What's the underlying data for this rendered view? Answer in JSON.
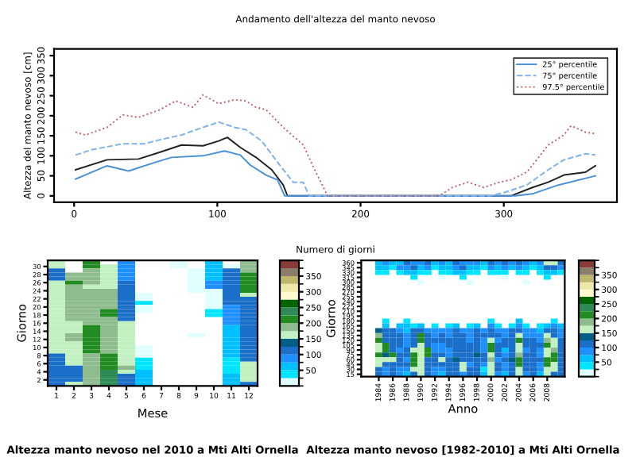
{
  "chart_data": [
    {
      "type": "line",
      "title": "Andamento dell'altezza del manto nevoso",
      "xlabel": "Numero di giorni",
      "ylabel": "Altezza del manto nevoso [cm]",
      "xlim": [
        -14,
        379
      ],
      "ylim": [
        -16,
        367
      ],
      "xticks": [
        0,
        100,
        200,
        300
      ],
      "yticks": [
        0,
        50,
        100,
        150,
        200,
        250,
        300,
        350
      ],
      "grid": false,
      "legend": "top right",
      "series": [
        {
          "color": "#222222",
          "line_style": "solid",
          "x": [
            1,
            23,
            45,
            60,
            75,
            90,
            101,
            107,
            116,
            127,
            138,
            146,
            149,
            305,
            320,
            331,
            342,
            357,
            364
          ],
          "values": [
            65,
            90,
            92,
            109,
            127,
            125,
            137,
            146,
            121,
            96,
            65,
            27,
            0,
            0,
            21,
            34,
            52,
            59,
            75
          ]
        },
        {
          "name": "25° percentile",
          "color": "#4a90d9",
          "line_style": "solid",
          "x": [
            1,
            23,
            38,
            57,
            68,
            90,
            105,
            116,
            123,
            134,
            142,
            147,
            308,
            320,
            338,
            364
          ],
          "values": [
            42,
            75,
            62,
            84,
            96,
            100,
            112,
            102,
            77,
            52,
            40,
            0,
            0,
            5,
            27,
            50
          ]
        },
        {
          "name": "75° percentile",
          "color": "#7fb2ec",
          "line_style": "dashed",
          "x": [
            1,
            12,
            34,
            49,
            60,
            75,
            90,
            101,
            112,
            120,
            131,
            142,
            153,
            160,
            164,
            290,
            301,
            316,
            331,
            342,
            357,
            364
          ],
          "values": [
            102,
            115,
            130,
            130,
            140,
            152,
            171,
            184,
            171,
            165,
            137,
            84,
            34,
            34,
            0,
            0,
            9,
            27,
            65,
            90,
            105,
            102
          ]
        },
        {
          "name": "97.5° percentile",
          "color": "#c06060",
          "line_style": "dotted",
          "x": [
            1,
            8,
            23,
            34,
            45,
            60,
            71,
            83,
            90,
            101,
            112,
            120,
            127,
            134,
            146,
            160,
            168,
            177,
            255,
            264,
            275,
            286,
            297,
            305,
            316,
            323,
            331,
            342,
            347,
            357,
            364
          ],
          "values": [
            159,
            152,
            171,
            202,
            196,
            215,
            237,
            221,
            252,
            230,
            240,
            237,
            221,
            215,
            171,
            127,
            65,
            0,
            0,
            21,
            34,
            21,
            34,
            40,
            59,
            90,
            127,
            152,
            175,
            159,
            155
          ]
        }
      ]
    },
    {
      "type": "heatmap",
      "title": "Altezza manto nevoso nel 2010 a Mti Alti Ornella",
      "xlabel": "Mese",
      "ylabel": "Giorno",
      "clim": [
        0,
        400
      ],
      "cticks": [
        50,
        100,
        150,
        200,
        250,
        300,
        350
      ],
      "categories": [
        "1",
        "2",
        "3",
        "4",
        "5",
        "6",
        "7",
        "8",
        "9",
        "10",
        "11",
        "12"
      ],
      "y_categories": [
        null,
        "30",
        null,
        "28",
        null,
        "26",
        null,
        "24",
        null,
        "22",
        null,
        "20",
        null,
        "18",
        null,
        "16",
        null,
        "14",
        null,
        "12",
        null,
        "10",
        null,
        "8",
        null,
        "6",
        null,
        "4",
        null,
        "2",
        null
      ],
      "cells": [
        [
          150,
          null,
          210,
          null,
          85,
          null,
          null,
          15,
          null,
          60,
          null,
          175
        ],
        [
          150,
          null,
          210,
          150,
          85,
          null,
          null,
          15,
          null,
          60,
          15,
          175
        ],
        [
          120,
          null,
          175,
          150,
          85,
          null,
          null,
          null,
          15,
          60,
          120,
          175
        ],
        [
          120,
          175,
          175,
          150,
          85,
          null,
          null,
          null,
          15,
          60,
          120,
          210
        ],
        [
          120,
          175,
          175,
          150,
          85,
          null,
          null,
          null,
          15,
          60,
          120,
          210
        ],
        [
          150,
          210,
          175,
          150,
          105,
          null,
          null,
          null,
          15,
          85,
          105,
          210
        ],
        [
          150,
          175,
          150,
          150,
          105,
          null,
          null,
          null,
          15,
          85,
          105,
          210
        ],
        [
          150,
          175,
          175,
          175,
          105,
          null,
          null,
          null,
          15,
          15,
          105,
          200
        ],
        [
          150,
          175,
          175,
          175,
          105,
          15,
          null,
          null,
          null,
          15,
          105,
          150
        ],
        [
          150,
          175,
          175,
          175,
          120,
          15,
          null,
          null,
          null,
          15,
          105,
          120
        ],
        [
          150,
          175,
          175,
          175,
          120,
          35,
          null,
          null,
          null,
          15,
          105,
          120
        ],
        [
          150,
          175,
          175,
          175,
          120,
          15,
          null,
          null,
          null,
          15,
          85,
          120
        ],
        [
          150,
          175,
          175,
          210,
          120,
          15,
          null,
          null,
          null,
          35,
          85,
          120
        ],
        [
          150,
          175,
          175,
          210,
          120,
          null,
          null,
          null,
          null,
          35,
          85,
          105
        ],
        [
          150,
          175,
          175,
          175,
          120,
          null,
          null,
          null,
          null,
          null,
          85,
          105
        ],
        [
          150,
          150,
          175,
          175,
          150,
          null,
          null,
          null,
          null,
          null,
          85,
          105
        ],
        [
          150,
          150,
          210,
          175,
          150,
          null,
          null,
          null,
          null,
          null,
          60,
          105
        ],
        [
          150,
          150,
          210,
          175,
          150,
          null,
          null,
          null,
          null,
          null,
          60,
          105
        ],
        [
          150,
          175,
          210,
          175,
          150,
          null,
          null,
          null,
          15,
          null,
          60,
          105
        ],
        [
          150,
          175,
          210,
          175,
          150,
          null,
          null,
          null,
          null,
          null,
          60,
          120
        ],
        [
          150,
          150,
          210,
          175,
          150,
          null,
          null,
          null,
          null,
          null,
          60,
          120
        ],
        [
          150,
          150,
          210,
          175,
          150,
          15,
          null,
          null,
          null,
          null,
          60,
          120
        ],
        [
          150,
          150,
          210,
          175,
          150,
          15,
          null,
          null,
          null,
          null,
          60,
          120
        ],
        [
          120,
          150,
          175,
          210,
          150,
          15,
          null,
          null,
          null,
          null,
          60,
          120
        ],
        [
          120,
          150,
          175,
          210,
          150,
          35,
          null,
          null,
          null,
          null,
          35,
          120
        ],
        [
          120,
          150,
          175,
          210,
          150,
          35,
          null,
          null,
          null,
          null,
          35,
          150
        ],
        [
          120,
          120,
          175,
          210,
          175,
          35,
          null,
          null,
          null,
          null,
          35,
          150
        ],
        [
          120,
          120,
          175,
          230,
          150,
          60,
          null,
          null,
          null,
          null,
          35,
          150
        ],
        [
          120,
          120,
          175,
          230,
          120,
          60,
          null,
          null,
          null,
          null,
          60,
          150
        ],
        [
          120,
          120,
          175,
          230,
          120,
          60,
          null,
          null,
          null,
          null,
          60,
          150
        ],
        [
          120,
          150,
          175,
          230,
          120,
          60,
          null,
          null,
          null,
          null,
          60,
          120
        ]
      ]
    },
    {
      "type": "heatmap",
      "title": "Altezza manto nevoso [1982-2010] a Mti Alti Ornella",
      "xlabel": "Anno",
      "ylabel": "Giorno",
      "clim": [
        0,
        400
      ],
      "cticks": [
        50,
        100,
        150,
        200,
        250,
        300,
        350
      ],
      "categories": [
        null,
        null,
        "1984",
        null,
        "1986",
        null,
        "1988",
        null,
        "1990",
        null,
        "1992",
        null,
        "1994",
        null,
        "1996",
        null,
        "1998",
        null,
        "2000",
        null,
        "2002",
        null,
        "2004",
        null,
        "2006",
        null,
        "2008",
        null,
        null
      ],
      "y_categories": [
        "360",
        "345",
        "330",
        "315",
        "300",
        "285",
        "270",
        "255",
        "240",
        "225",
        "210",
        "195",
        "180",
        "165",
        "150",
        "135",
        "120",
        "105",
        "90",
        "75",
        "60",
        "45",
        "30",
        "15"
      ],
      "cells": [
        [
          null,
          null,
          60,
          85,
          60,
          60,
          105,
          85,
          85,
          105,
          60,
          85,
          60,
          105,
          85,
          85,
          85,
          60,
          105,
          85,
          105,
          85,
          105,
          85,
          60,
          85,
          150,
          150,
          105
        ],
        [
          null,
          null,
          60,
          60,
          35,
          85,
          85,
          105,
          60,
          85,
          35,
          60,
          60,
          85,
          105,
          60,
          60,
          35,
          85,
          60,
          85,
          60,
          85,
          60,
          35,
          60,
          105,
          120,
          85
        ],
        [
          null,
          null,
          35,
          35,
          null,
          35,
          60,
          60,
          35,
          35,
          null,
          35,
          35,
          60,
          60,
          35,
          35,
          null,
          35,
          35,
          35,
          null,
          35,
          35,
          null,
          35,
          60,
          60,
          35
        ],
        [
          null,
          null,
          null,
          null,
          null,
          null,
          null,
          35,
          null,
          null,
          null,
          15,
          null,
          null,
          35,
          null,
          null,
          null,
          null,
          null,
          15,
          null,
          null,
          null,
          null,
          null,
          35,
          null,
          null
        ],
        [
          null,
          null,
          null,
          null,
          null,
          null,
          null,
          null,
          15,
          null,
          null,
          null,
          null,
          null,
          null,
          15,
          null,
          null,
          null,
          null,
          null,
          null,
          null,
          15,
          null,
          null,
          null,
          null,
          null
        ],
        [
          null,
          null,
          null,
          null,
          null,
          null,
          null,
          null,
          null,
          null,
          null,
          null,
          null,
          null,
          null,
          null,
          null,
          null,
          null,
          null,
          null,
          null,
          null,
          null,
          null,
          null,
          null,
          null,
          null
        ],
        [
          null,
          null,
          null,
          null,
          null,
          null,
          null,
          null,
          null,
          null,
          null,
          null,
          null,
          null,
          null,
          null,
          null,
          null,
          null,
          null,
          null,
          null,
          null,
          null,
          null,
          null,
          null,
          null,
          null
        ],
        [
          null,
          null,
          null,
          null,
          null,
          null,
          null,
          null,
          null,
          null,
          null,
          null,
          null,
          null,
          null,
          null,
          null,
          null,
          null,
          null,
          null,
          null,
          null,
          null,
          null,
          null,
          null,
          null,
          null
        ],
        [
          null,
          null,
          null,
          null,
          null,
          null,
          null,
          null,
          null,
          null,
          null,
          null,
          null,
          null,
          null,
          null,
          null,
          null,
          null,
          null,
          null,
          null,
          null,
          null,
          null,
          null,
          null,
          null,
          null
        ],
        [
          null,
          null,
          null,
          null,
          null,
          null,
          null,
          null,
          null,
          null,
          null,
          null,
          null,
          null,
          null,
          null,
          null,
          null,
          null,
          null,
          null,
          null,
          null,
          null,
          null,
          null,
          null,
          null,
          null
        ],
        [
          null,
          null,
          null,
          null,
          null,
          null,
          null,
          null,
          null,
          null,
          null,
          null,
          null,
          null,
          null,
          null,
          null,
          null,
          null,
          null,
          null,
          null,
          null,
          null,
          null,
          null,
          null,
          null,
          null
        ],
        [
          null,
          null,
          null,
          null,
          null,
          null,
          null,
          null,
          null,
          null,
          null,
          null,
          null,
          null,
          null,
          null,
          null,
          null,
          null,
          null,
          null,
          null,
          null,
          null,
          null,
          null,
          null,
          null,
          null
        ],
        [
          null,
          null,
          null,
          35,
          null,
          null,
          35,
          null,
          null,
          null,
          null,
          null,
          null,
          null,
          null,
          null,
          null,
          null,
          35,
          null,
          null,
          null,
          60,
          null,
          null,
          null,
          null,
          35,
          null
        ],
        [
          null,
          null,
          null,
          60,
          null,
          60,
          60,
          35,
          60,
          null,
          35,
          null,
          35,
          60,
          null,
          35,
          60,
          null,
          85,
          35,
          null,
          35,
          85,
          35,
          null,
          35,
          60,
          85,
          60
        ],
        [
          null,
          null,
          130,
          100,
          100,
          90,
          70,
          100,
          105,
          85,
          85,
          90,
          85,
          100,
          85,
          85,
          100,
          90,
          105,
          90,
          85,
          100,
          120,
          85,
          90,
          60,
          110,
          105,
          90
        ],
        [
          null,
          null,
          190,
          110,
          115,
          110,
          80,
          105,
          210,
          100,
          95,
          105,
          90,
          110,
          100,
          90,
          105,
          100,
          120,
          100,
          95,
          120,
          150,
          90,
          95,
          85,
          150,
          120,
          95
        ],
        [
          null,
          null,
          200,
          120,
          100,
          100,
          85,
          110,
          200,
          110,
          100,
          100,
          105,
          115,
          120,
          95,
          120,
          85,
          150,
          95,
          105,
          110,
          200,
          100,
          100,
          95,
          175,
          160,
          100
        ],
        [
          null,
          null,
          150,
          210,
          110,
          105,
          90,
          120,
          155,
          120,
          90,
          85,
          100,
          120,
          110,
          100,
          110,
          90,
          210,
          105,
          100,
          115,
          160,
          105,
          120,
          100,
          200,
          150,
          115
        ],
        [
          null,
          null,
          170,
          200,
          120,
          95,
          110,
          160,
          160,
          210,
          85,
          90,
          85,
          110,
          100,
          105,
          115,
          95,
          200,
          110,
          60,
          120,
          150,
          95,
          110,
          90,
          160,
          175,
          120
        ],
        [
          null,
          null,
          210,
          130,
          200,
          100,
          100,
          220,
          150,
          200,
          100,
          100,
          95,
          120,
          105,
          110,
          125,
          105,
          160,
          100,
          85,
          110,
          175,
          100,
          105,
          85,
          150,
          210,
          110
        ],
        [
          null,
          null,
          160,
          150,
          170,
          110,
          95,
          210,
          170,
          110,
          105,
          150,
          100,
          125,
          100,
          100,
          120,
          100,
          175,
          95,
          100,
          125,
          210,
          110,
          115,
          100,
          210,
          200,
          105
        ],
        [
          null,
          null,
          150,
          105,
          120,
          100,
          100,
          200,
          150,
          120,
          100,
          100,
          110,
          120,
          160,
          95,
          110,
          85,
          170,
          105,
          90,
          120,
          200,
          105,
          120,
          90,
          200,
          160,
          120
        ],
        [
          null,
          null,
          105,
          85,
          110,
          90,
          85,
          150,
          160,
          105,
          90,
          85,
          105,
          115,
          150,
          105,
          115,
          40,
          160,
          100,
          85,
          115,
          160,
          100,
          110,
          85,
          170,
          150,
          110
        ],
        [
          null,
          null,
          110,
          90,
          105,
          85,
          60,
          120,
          150,
          100,
          85,
          60,
          100,
          120,
          85,
          100,
          120,
          60,
          150,
          90,
          60,
          100,
          150,
          90,
          100,
          60,
          150,
          110,
          100
        ]
      ]
    }
  ]
}
